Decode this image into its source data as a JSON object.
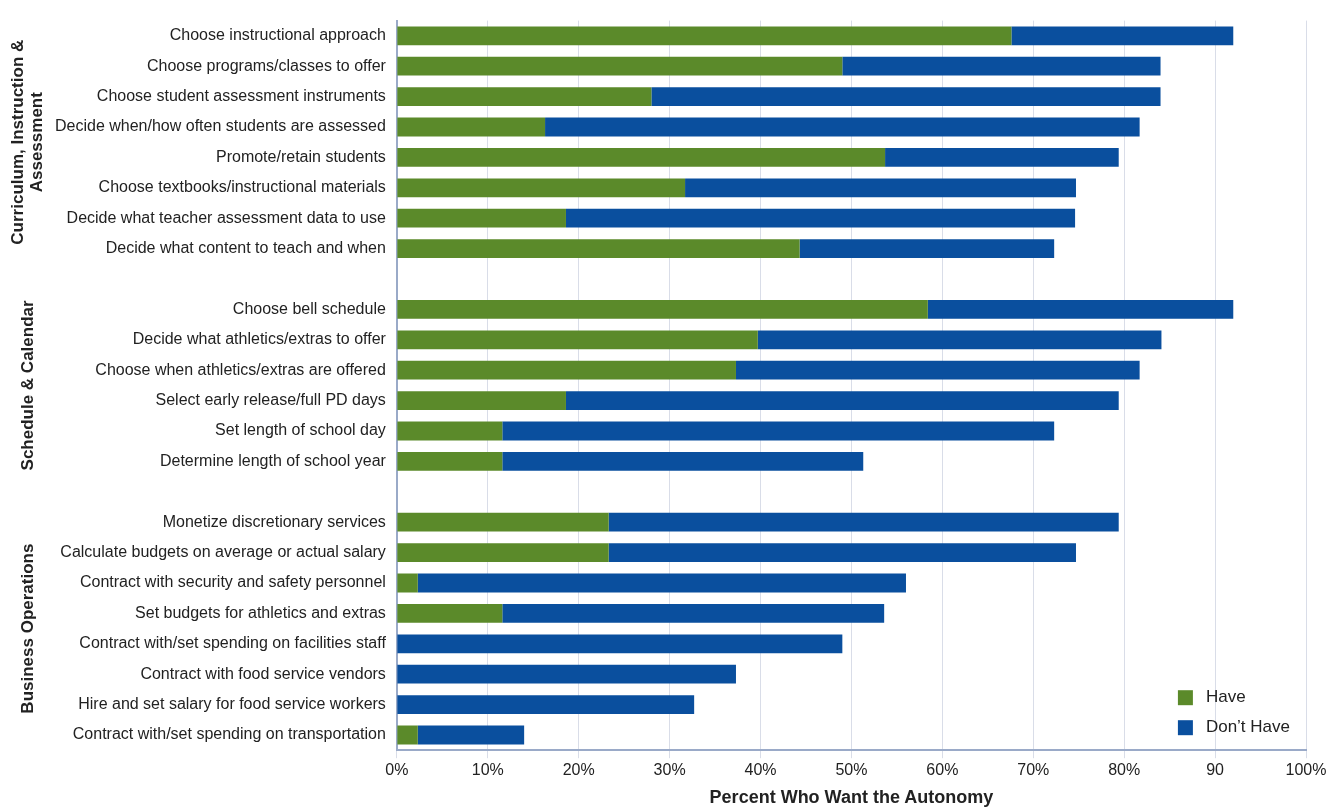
{
  "chart_data": {
    "type": "bar",
    "orientation": "horizontal",
    "stacked": true,
    "xlabel": "Percent Who Want the Autonomy",
    "categories": [
      "Choose instructional approach",
      "Choose programs/classes to offer",
      "Choose student assessment instruments",
      "Decide when/how often students are assessed",
      "Promote/retain students",
      "Choose textbooks/instructional materials",
      "Decide what teacher assessment data to use",
      "Decide what content to teach and when",
      null,
      "Choose bell schedule",
      "Decide what athletics/extras to offer",
      "Choose when athletics/extras are offered",
      "Select early release/full PD days",
      "Set length of school day",
      "Determine length of school year",
      null,
      "Monetize discretionary services",
      "Calculate budgets on average or actual salary",
      "Contract with security and safety personnel",
      "Set budgets for athletics and extras",
      "Contract with/set spending on facilities staff",
      "Contract with food service vendors",
      "Hire and set salary for food service workers",
      "Contract with/set spending on transportation"
    ],
    "series": [
      {
        "name": "Have",
        "color": "#5b8a2a",
        "values": [
          67.6,
          49,
          28,
          16.3,
          53.7,
          31.7,
          18.6,
          44.3,
          null,
          58.4,
          39.7,
          37.3,
          18.6,
          11.6,
          11.6,
          null,
          23.3,
          23.3,
          2.3,
          11.6,
          0,
          0,
          0,
          2.3
        ]
      },
      {
        "name": "Don’t Have",
        "color": "#0a4f9e",
        "values": [
          24.4,
          35,
          56,
          65.4,
          25.7,
          43,
          56,
          28,
          null,
          33.6,
          44.4,
          44.4,
          60.8,
          60.7,
          39.7,
          null,
          56.1,
          51.4,
          53.7,
          42,
          49,
          37.3,
          32.7,
          11.7
        ]
      }
    ],
    "xlim": [
      0,
      100
    ],
    "xticks": [
      {
        "value": 0,
        "label": "0%"
      },
      {
        "value": 10,
        "label": "10%"
      },
      {
        "value": 20,
        "label": "20%"
      },
      {
        "value": 30,
        "label": "30%"
      },
      {
        "value": 40,
        "label": "40%"
      },
      {
        "value": 50,
        "label": "50%"
      },
      {
        "value": 60,
        "label": "60%"
      },
      {
        "value": 70,
        "label": "70%"
      },
      {
        "value": 80,
        "label": "80%"
      },
      {
        "value": 90,
        "label": "90"
      },
      {
        "value": 100,
        "label": "100%"
      }
    ],
    "grid": "x",
    "legend": "bottom right",
    "annotations": [
      "Curriculum, Instruction & Assessment",
      "Schedule & Calendar",
      "Business Operations"
    ]
  }
}
